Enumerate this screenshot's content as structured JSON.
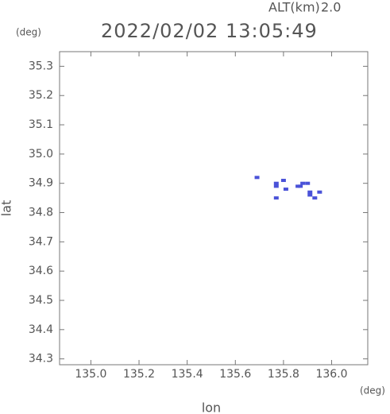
{
  "chart_data": {
    "type": "scatter",
    "title": "2022/02/02 13:05:49",
    "altitude_label": "ALT(km)",
    "altitude_value": "2.0",
    "y_unit": "(deg)",
    "x_unit": "(deg)",
    "xlabel": "lon",
    "ylabel": "lat",
    "color": "#4a52d8",
    "xlim": [
      134.87,
      136.15
    ],
    "ylim": [
      34.28,
      35.35
    ],
    "xticks": [
      {
        "value": 135,
        "label": "135.0"
      },
      135.2,
      135.4,
      135.6,
      135.8,
      {
        "value": 136,
        "label": "136.0"
      }
    ],
    "yticks": [
      34.3,
      34.4,
      34.5,
      34.6,
      34.7,
      34.8,
      34.9,
      {
        "value": 35,
        "label": "35.0"
      },
      35.1,
      35.2,
      35.3
    ],
    "x": [
      135.69,
      135.77,
      135.8,
      135.77,
      135.81,
      135.77,
      135.86,
      135.88,
      135.9,
      135.91,
      135.91,
      135.93,
      135.95,
      135.87
    ],
    "y": [
      34.92,
      34.9,
      34.91,
      34.89,
      34.88,
      34.85,
      34.89,
      34.9,
      34.9,
      34.87,
      34.86,
      34.85,
      34.87,
      34.89
    ]
  }
}
